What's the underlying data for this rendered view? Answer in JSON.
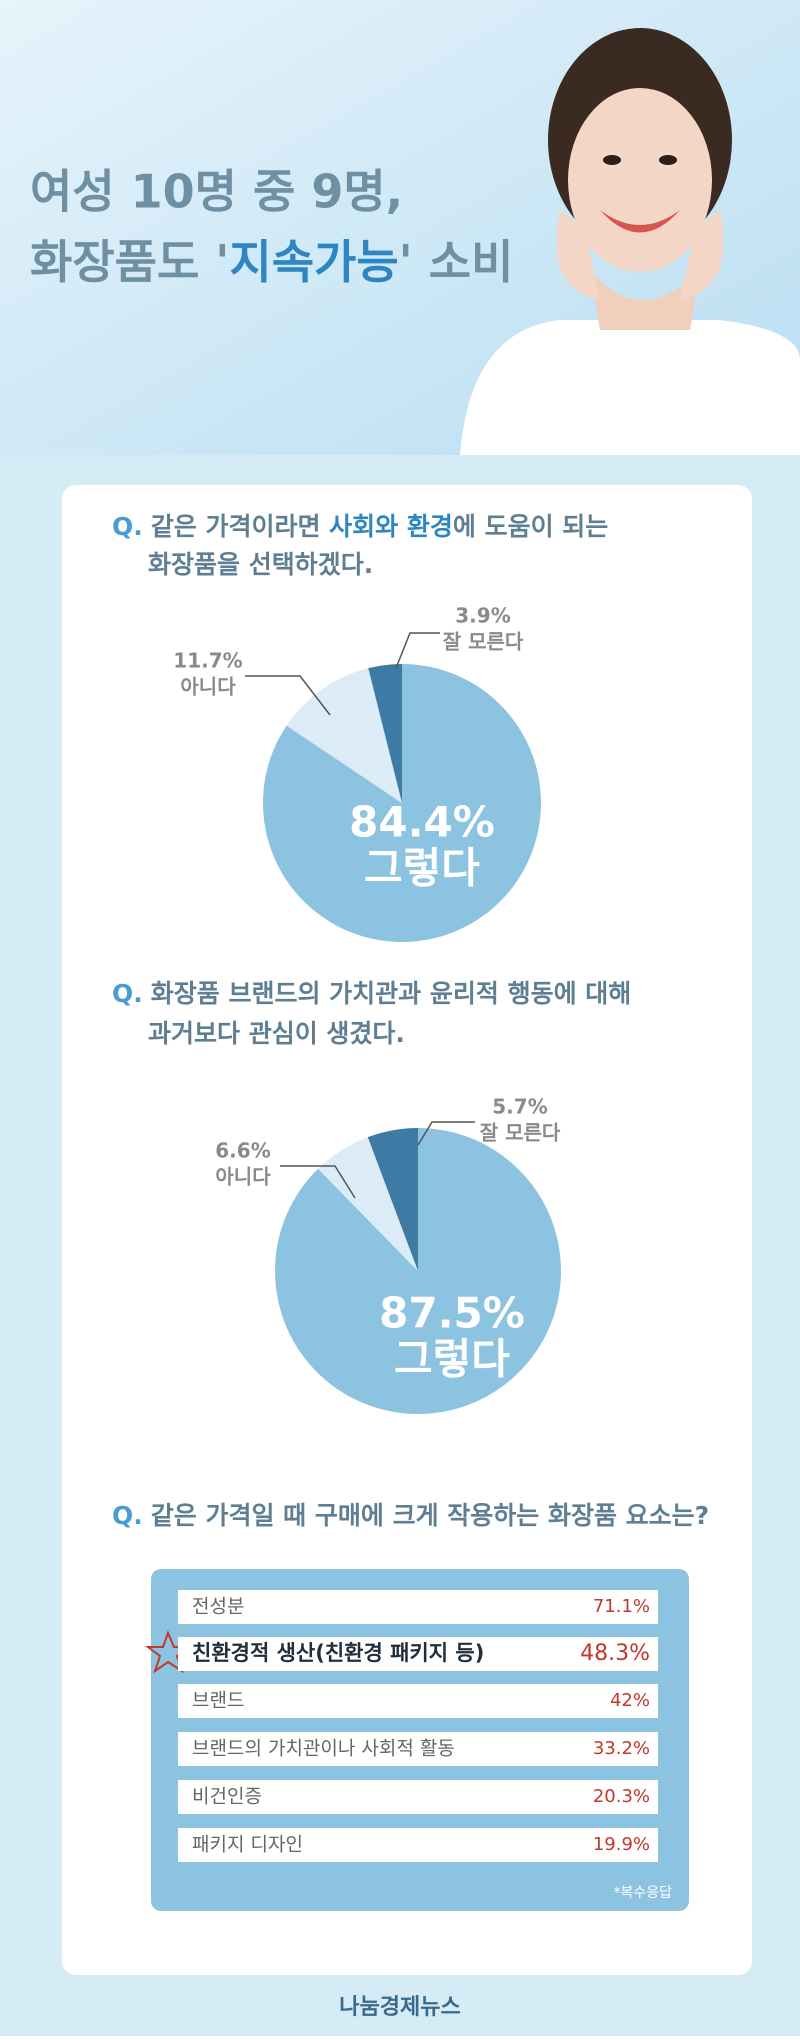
{
  "header": {
    "title_line1": "여성 10명 중 9명,",
    "title_line2": [
      "화장품도 '",
      "지속가능",
      "' 소비"
    ]
  },
  "q1": {
    "line1": [
      "Q.",
      "같은 가격이라면 ",
      "사회와 환경",
      "에 도움이 되는"
    ],
    "line2": "화장품을 선택하겠다."
  },
  "pie1": {
    "categories": [
      "그렇다",
      "아니다",
      "잘 모른다"
    ],
    "values": [
      84.4,
      11.7,
      3.9
    ],
    "value_labels": [
      "84.4%",
      "11.7%",
      "3.9%"
    ],
    "colors": [
      "#8cc3e0",
      "#dcecf6",
      "#3e7ba4"
    ]
  },
  "q2": {
    "line1": [
      "Q.",
      "화장품 브랜드의 가치관과 윤리적 행동에 대해"
    ],
    "line2": "과거보다 관심이 생겼다."
  },
  "pie2": {
    "categories": [
      "그렇다",
      "아니다",
      "잘 모른다"
    ],
    "values": [
      87.5,
      6.6,
      5.7
    ],
    "value_labels": [
      "87.5%",
      "6.6%",
      "5.7%"
    ],
    "colors": [
      "#8cc3e0",
      "#dcecf6",
      "#3e7ba4"
    ]
  },
  "q3": {
    "line1": [
      "Q.",
      "같은 가격일 때 구매에 크게 작용하는 화장품 요소는?"
    ]
  },
  "table": {
    "rows": [
      [
        "전성분",
        "71.1%"
      ],
      [
        "친환경적 생산(친환경 패키지 등)",
        "48.3%"
      ],
      [
        "브랜드",
        "42%"
      ],
      [
        "브랜드의 가치관이나 사회적 활동",
        "33.2%"
      ],
      [
        "비건인증",
        "20.3%"
      ],
      [
        "패키지 디자인",
        "19.9%"
      ]
    ],
    "note": "*복수응답"
  },
  "footer": "나눔경제뉴스"
}
